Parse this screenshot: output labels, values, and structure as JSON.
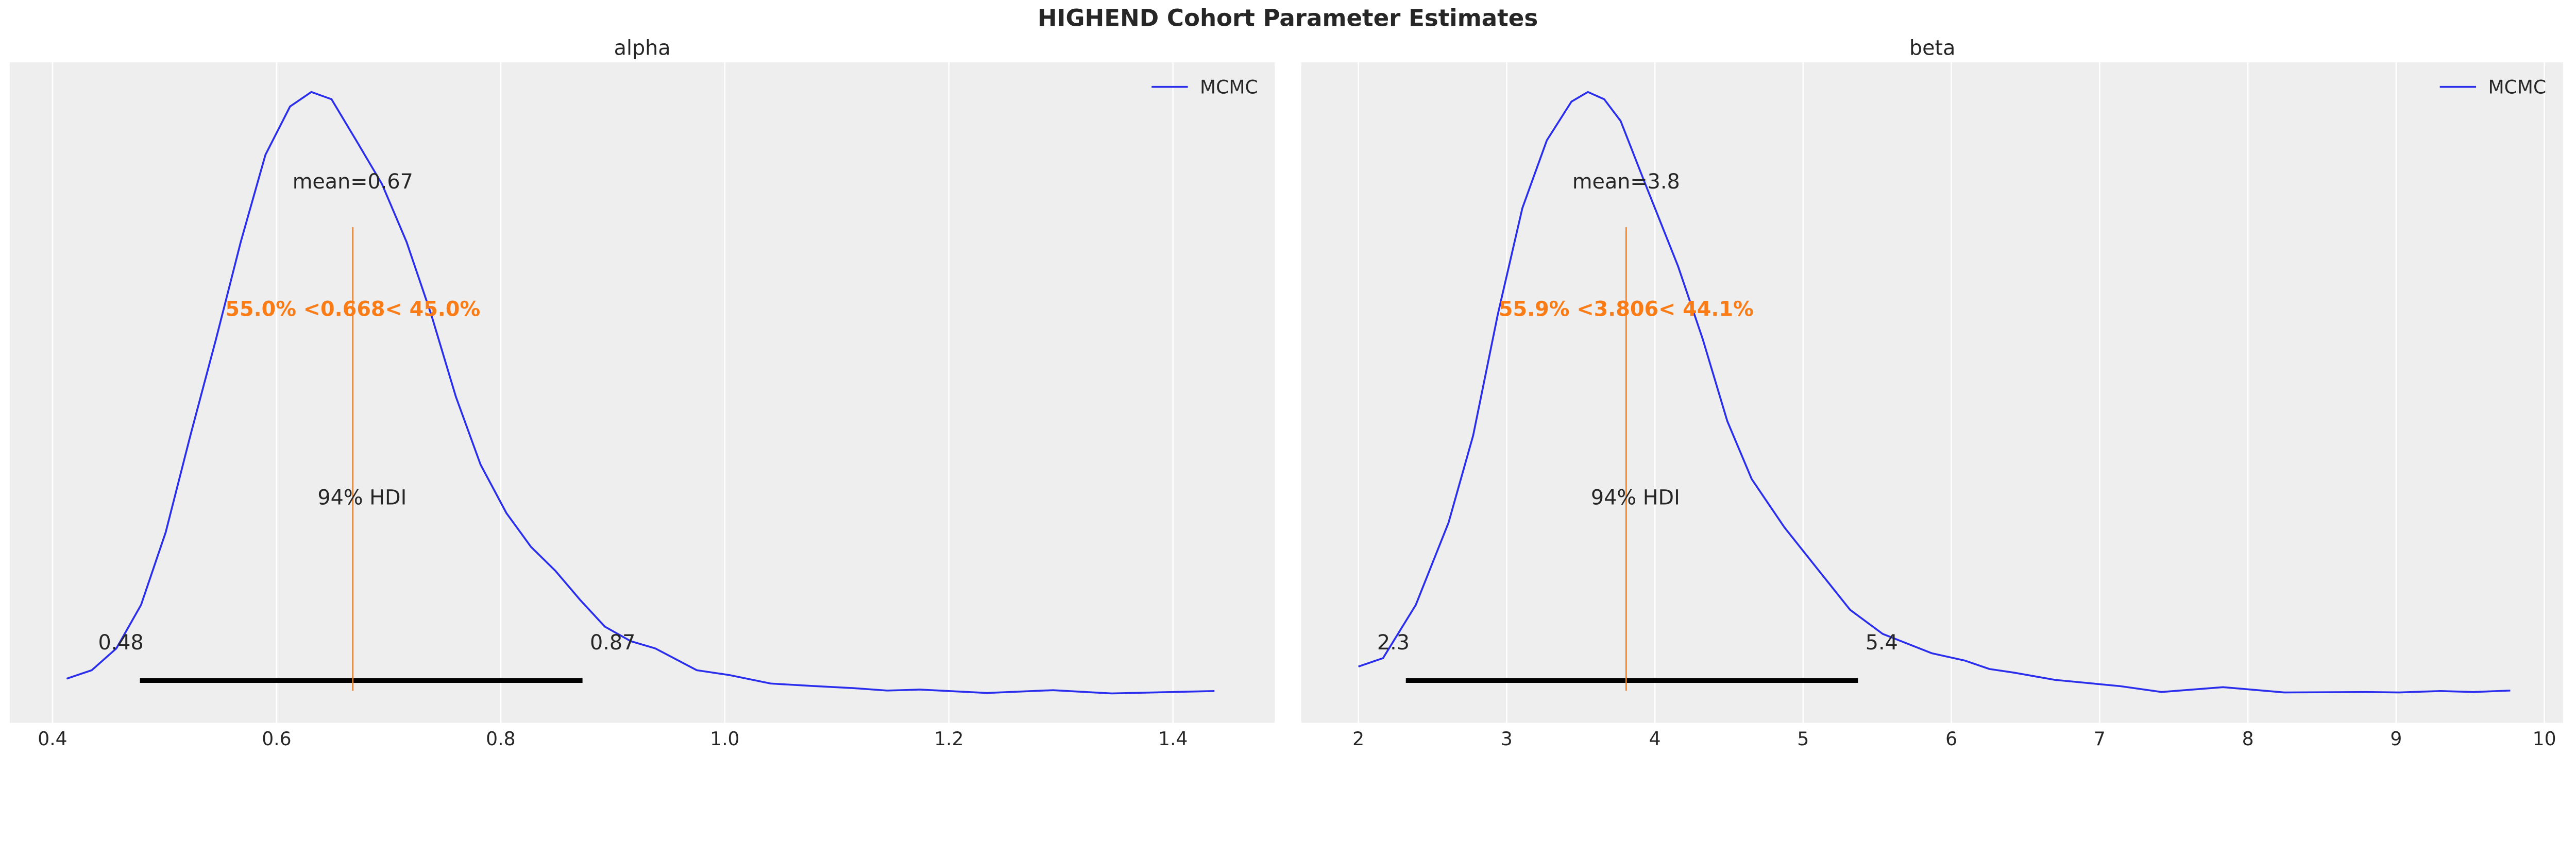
{
  "figure": {
    "title": "HIGHEND Cohort Parameter Estimates"
  },
  "colors": {
    "kde": "#2a2eec",
    "mean_line": "#fa7c17",
    "point_estimate_text": "#fa7c17",
    "hdi_bar": "#000000",
    "axes_face": "#eeeeee",
    "grid": "#ffffff"
  },
  "chart_data": [
    {
      "type": "line",
      "title": "alpha",
      "legend": {
        "entries": [
          "MCMC"
        ],
        "placement": "top-right"
      },
      "xlim": [
        0.4,
        1.45
      ],
      "xticks": [
        0.4,
        0.6,
        0.8,
        1.0,
        1.2,
        1.4
      ],
      "xtick_labels": [
        "0.4",
        "0.6",
        "0.8",
        "1.0",
        "1.2",
        "1.4"
      ],
      "grid": true,
      "mean_label": "mean=0.67",
      "mean": 0.668,
      "point_estimate_label": "55.0% <0.668< 45.0%",
      "hdi_label": "94% HDI",
      "hdi": [
        0.478,
        0.873
      ],
      "hdi_low_label": "0.48",
      "hdi_high_label": "0.87",
      "kde": {
        "x": [
          0.4126,
          0.435,
          0.457,
          0.479,
          0.501,
          0.523,
          0.546,
          0.568,
          0.59,
          0.612,
          0.631,
          0.649,
          0.671,
          0.694,
          0.716,
          0.738,
          0.76,
          0.782,
          0.805,
          0.827,
          0.849,
          0.871,
          0.893,
          0.916,
          0.938,
          0.975,
          1.004,
          1.041,
          1.078,
          1.115,
          1.145,
          1.174,
          1.234,
          1.293,
          1.345,
          1.437
        ],
        "relative_density": [
          0.03,
          0.044,
          0.08,
          0.152,
          0.272,
          0.432,
          0.592,
          0.752,
          0.896,
          0.976,
          1.0,
          0.988,
          0.92,
          0.848,
          0.752,
          0.632,
          0.496,
          0.384,
          0.304,
          0.248,
          0.208,
          0.16,
          0.116,
          0.092,
          0.08,
          0.044,
          0.036,
          0.022,
          0.018,
          0.0144,
          0.0104,
          0.012,
          0.0064,
          0.011,
          0.0056,
          0.0096
        ]
      }
    },
    {
      "type": "line",
      "title": "beta",
      "legend": {
        "entries": [
          "MCMC"
        ],
        "placement": "top-right"
      },
      "xlim": [
        1.7,
        10.2
      ],
      "xticks": [
        2,
        3,
        4,
        5,
        6,
        7,
        8,
        9,
        10
      ],
      "xtick_labels": [
        "2",
        "3",
        "4",
        "5",
        "6",
        "7",
        "8",
        "9",
        "10"
      ],
      "grid": true,
      "mean_label": "mean=3.8",
      "mean": 3.806,
      "point_estimate_label": "55.9% <3.806< 44.1%",
      "hdi_label": "94% HDI",
      "hdi": [
        2.32,
        5.37
      ],
      "hdi_low_label": "2.3",
      "hdi_high_label": "5.4",
      "kde": {
        "x": [
          2.0,
          2.166,
          2.387,
          2.608,
          2.774,
          2.94,
          3.106,
          3.271,
          3.437,
          3.548,
          3.658,
          3.769,
          3.935,
          4.156,
          4.322,
          4.488,
          4.653,
          4.874,
          5.095,
          5.316,
          5.537,
          5.869,
          6.09,
          6.256,
          6.422,
          6.698,
          7.14,
          7.417,
          7.832,
          8.246,
          8.8,
          9.02,
          9.3,
          9.52,
          9.77
        ],
        "relative_density": [
          0.05,
          0.064,
          0.152,
          0.288,
          0.432,
          0.632,
          0.808,
          0.92,
          0.984,
          1.0,
          0.988,
          0.952,
          0.848,
          0.712,
          0.592,
          0.456,
          0.36,
          0.28,
          0.212,
          0.144,
          0.104,
          0.072,
          0.06,
          0.046,
          0.04,
          0.028,
          0.0176,
          0.008,
          0.016,
          0.0072,
          0.008,
          0.0072,
          0.0096,
          0.008,
          0.0104
        ]
      }
    }
  ]
}
